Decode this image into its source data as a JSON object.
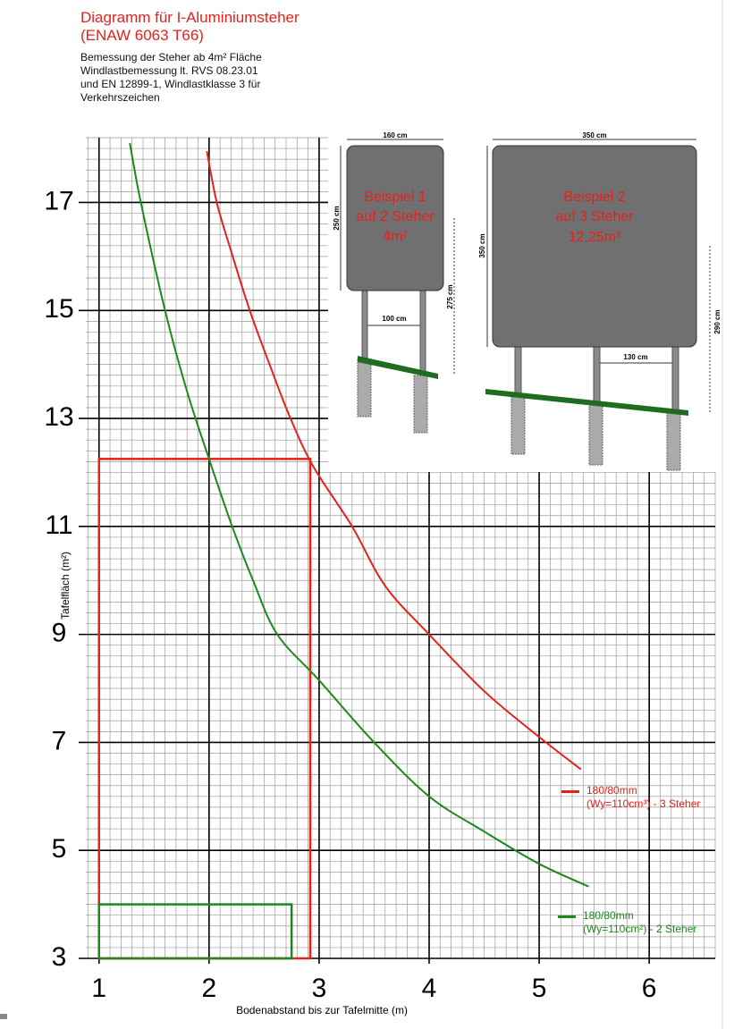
{
  "chart_data": {
    "type": "line",
    "title": "Diagramm für I-Aluminiumsteher\n(ENAW 6063 T66)",
    "subtitle": "Bemessung der Steher ab 4m² Fläche\nWindlastbemessung lt. RVS 08.23.01\nund EN 12899-1, Windlastklasse 3 für\nVerkehrszeichen",
    "x_label": "Bodenabstand bis zur Tafelmitte (m)",
    "y_label": "Tafelfläch (m²)",
    "xlim": [
      0.88,
      6.6
    ],
    "ylim": [
      3,
      18.2
    ],
    "xticks": [
      1,
      2,
      3,
      4,
      5,
      6
    ],
    "yticks": [
      3,
      5,
      7,
      9,
      11,
      13,
      15,
      17
    ],
    "grid": true,
    "minor_grid": {
      "x": 0.1,
      "y": 0.2
    },
    "legend": "lower right",
    "series": [
      {
        "name": "180/80mm\n(Wy=110cm³) - 3 Steher",
        "color": "#e8201c",
        "x": [
          1.98,
          2.07,
          2.2,
          2.37,
          2.55,
          2.74,
          2.95,
          3.3,
          3.6,
          4.0,
          4.5,
          5.0,
          5.38
        ],
        "values": [
          17.95,
          17,
          16.1,
          15,
          14,
          13,
          12.1,
          11,
          9.9,
          9,
          7.95,
          7.1,
          6.5
        ]
      },
      {
        "name": "180/80mm\n(Wy=110cm²) - 2 Steher",
        "color": "#1a8a1a",
        "x": [
          1.28,
          1.38,
          1.6,
          1.8,
          2.0,
          2.21,
          2.4,
          2.62,
          3.0,
          3.5,
          4.0,
          4.5,
          5.0,
          5.45
        ],
        "values": [
          18.1,
          17,
          15,
          13.5,
          12.25,
          11,
          10,
          9,
          8.15,
          7,
          6,
          5.35,
          4.75,
          4.33
        ]
      }
    ],
    "boxes": [
      {
        "color": "#e8201c",
        "x": [
          1,
          2.92
        ],
        "y": [
          3,
          12.25
        ]
      },
      {
        "color": "#1a8a1a",
        "x": [
          1,
          2.75
        ],
        "y": [
          3,
          4
        ]
      }
    ],
    "annotations": {
      "example1": {
        "label": [
          "Beispiel 1",
          "auf 2 Steher",
          "4m²"
        ],
        "width": "160 cm",
        "height": "250 cm",
        "total_height": "275 cm",
        "post_spacing": "100 cm"
      },
      "example2": {
        "label": [
          "Beispiel 2",
          "auf 3 Steher",
          "12,25m²"
        ],
        "width": "350 cm",
        "height": "350 cm",
        "total_height": "290 cm",
        "post_spacing": "130 cm"
      }
    }
  }
}
